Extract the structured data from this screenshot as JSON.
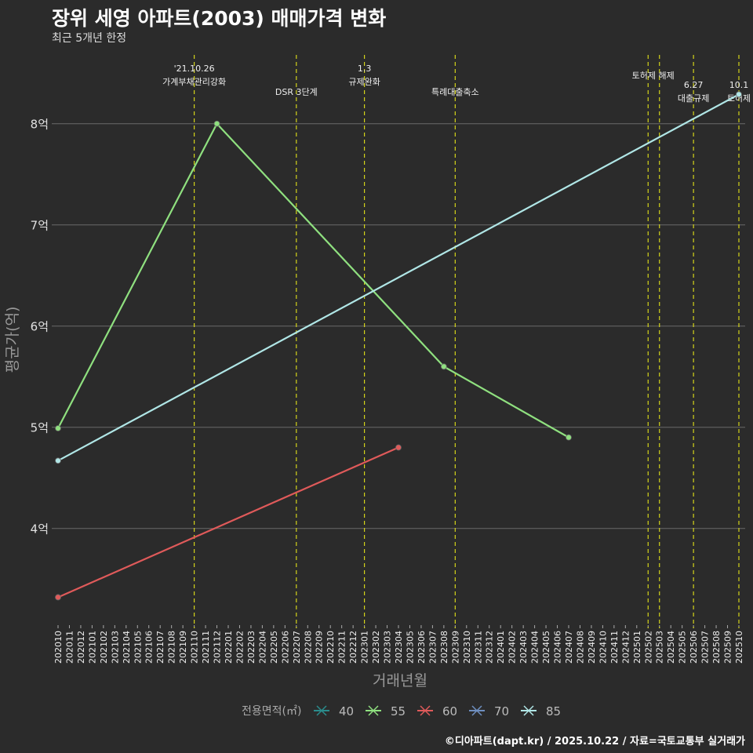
{
  "title": "장위 세영 아파트(2003) 매매가격 변화",
  "subtitle": "최근 5개년 한정",
  "caption": "©디아파트(dapt.kr) / 2025.10.22 / 자료=국토교통부 실거래가",
  "chart_data": {
    "type": "line",
    "xlabel": "거래년월",
    "ylabel": "평균가(억)",
    "x": [
      "202010",
      "202011",
      "202012",
      "202101",
      "202102",
      "202103",
      "202104",
      "202105",
      "202106",
      "202107",
      "202108",
      "202109",
      "202110",
      "202111",
      "202112",
      "202201",
      "202202",
      "202203",
      "202204",
      "202205",
      "202206",
      "202207",
      "202208",
      "202209",
      "202210",
      "202211",
      "202212",
      "202301",
      "202302",
      "202303",
      "202304",
      "202305",
      "202306",
      "202307",
      "202308",
      "202309",
      "202310",
      "202311",
      "202312",
      "202401",
      "202402",
      "202403",
      "202404",
      "202405",
      "202406",
      "202407",
      "202408",
      "202409",
      "202410",
      "202411",
      "202412",
      "202501",
      "202502",
      "202503",
      "202504",
      "202505",
      "202506",
      "202507",
      "202508",
      "202509",
      "202510"
    ],
    "ylim": [
      3.06,
      8.68
    ],
    "yticks": [
      {
        "v": 4,
        "label": "4억"
      },
      {
        "v": 5,
        "label": "5억"
      },
      {
        "v": 6,
        "label": "6억"
      },
      {
        "v": 7,
        "label": "7억"
      },
      {
        "v": 8,
        "label": "8억"
      }
    ],
    "legend": {
      "title": "전용면적(㎡)",
      "position": "bottom"
    },
    "series": [
      {
        "name": "40",
        "color": "#2a8c8c",
        "points": []
      },
      {
        "name": "55",
        "color": "#8fe07f",
        "points": [
          [
            "202010",
            4.99
          ],
          [
            "202112",
            8.0
          ],
          [
            "202308",
            5.6
          ],
          [
            "202407",
            4.9
          ]
        ]
      },
      {
        "name": "60",
        "color": "#e05a5a",
        "points": [
          [
            "202010",
            3.32
          ],
          [
            "202304",
            4.8
          ]
        ]
      },
      {
        "name": "70",
        "color": "#6f8fc0",
        "points": []
      },
      {
        "name": "85",
        "color": "#b0e6e6",
        "points": [
          [
            "202010",
            4.67
          ],
          [
            "202510",
            8.29
          ]
        ]
      }
    ],
    "annotations": [
      {
        "x": "202110",
        "lines": [
          "'21.10.26",
          "가계부채관리강화"
        ],
        "row": 0
      },
      {
        "x": "202207",
        "lines": [
          "DSR 3단계"
        ],
        "row": 1
      },
      {
        "x": "202301",
        "lines": [
          "1.3",
          "규제완화"
        ],
        "row": 0
      },
      {
        "x": "202309",
        "lines": [
          "특례대출축소"
        ],
        "row": 1
      },
      {
        "x": "202502",
        "lines": [],
        "row": 0
      },
      {
        "x": "202503",
        "lines": [
          "토허제 해제"
        ],
        "row": -1
      },
      {
        "x": "202506",
        "lines": [
          "6.27",
          "대출규제"
        ],
        "row": 2
      },
      {
        "x": "202510",
        "lines": [
          "10.1",
          "토허제"
        ],
        "row": 2
      }
    ]
  }
}
